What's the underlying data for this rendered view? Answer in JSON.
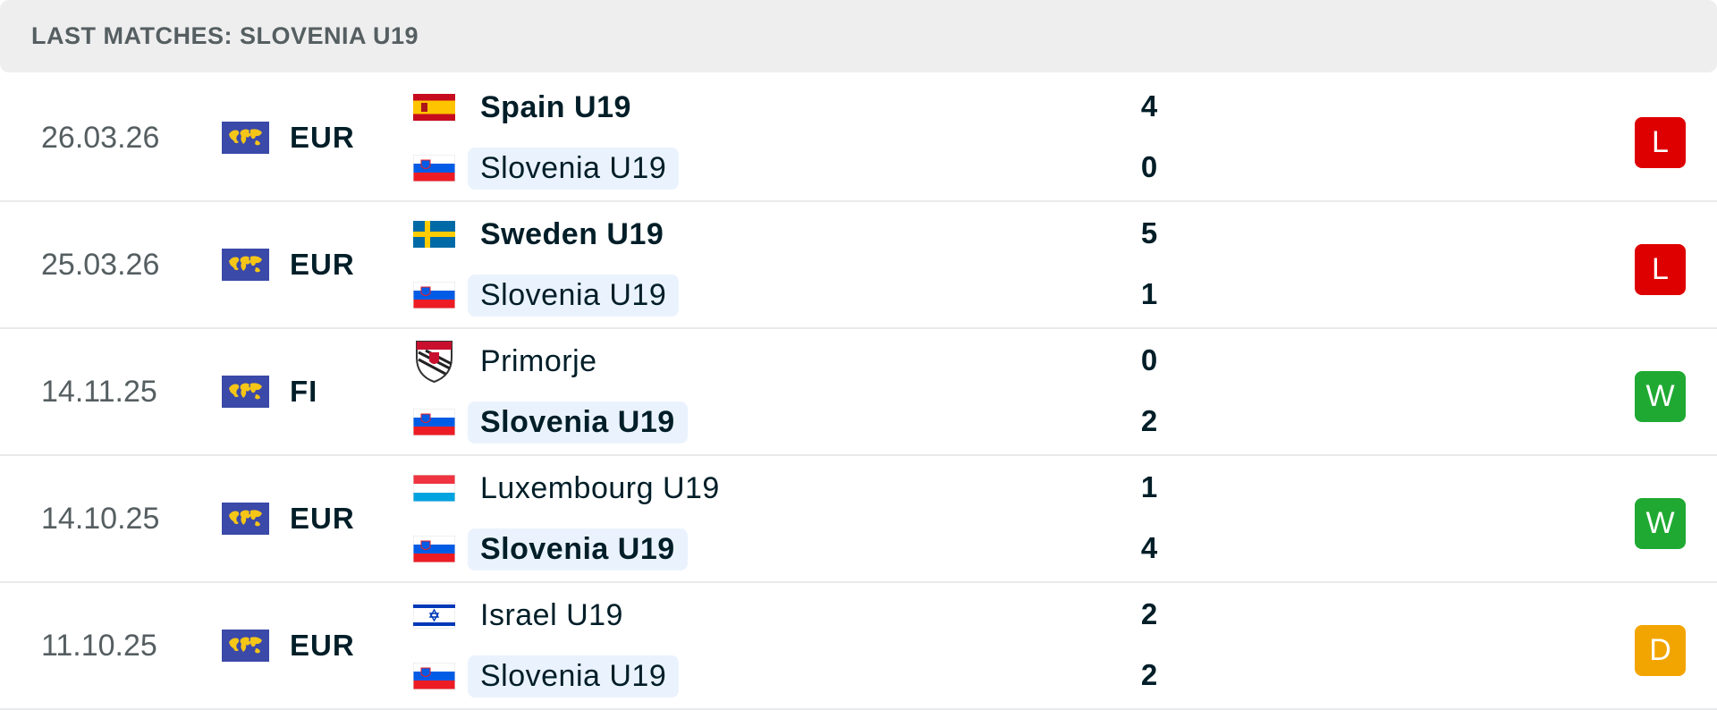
{
  "header": {
    "title": "LAST MATCHES: SLOVENIA U19"
  },
  "colors": {
    "loss": "#de0000",
    "win": "#1fa932",
    "draw": "#f2a500",
    "highlight": "#eaf3fd"
  },
  "matches": [
    {
      "date": "26.03.26",
      "competition": "EUR",
      "home": {
        "name": "Spain U19",
        "flag": "spain-flag-icon",
        "bold": true,
        "highlight": false
      },
      "away": {
        "name": "Slovenia U19",
        "flag": "slovenia-flag-icon",
        "bold": false,
        "highlight": true
      },
      "home_score": "4",
      "away_score": "0",
      "result": "L"
    },
    {
      "date": "25.03.26",
      "competition": "EUR",
      "home": {
        "name": "Sweden U19",
        "flag": "sweden-flag-icon",
        "bold": true,
        "highlight": false
      },
      "away": {
        "name": "Slovenia U19",
        "flag": "slovenia-flag-icon",
        "bold": false,
        "highlight": true
      },
      "home_score": "5",
      "away_score": "1",
      "result": "L"
    },
    {
      "date": "14.11.25",
      "competition": "FI",
      "home": {
        "name": "Primorje",
        "flag": "primorje-crest-icon",
        "bold": false,
        "highlight": false
      },
      "away": {
        "name": "Slovenia U19",
        "flag": "slovenia-flag-icon",
        "bold": true,
        "highlight": true
      },
      "home_score": "0",
      "away_score": "2",
      "result": "W"
    },
    {
      "date": "14.10.25",
      "competition": "EUR",
      "home": {
        "name": "Luxembourg U19",
        "flag": "luxembourg-flag-icon",
        "bold": false,
        "highlight": false
      },
      "away": {
        "name": "Slovenia U19",
        "flag": "slovenia-flag-icon",
        "bold": true,
        "highlight": true
      },
      "home_score": "1",
      "away_score": "4",
      "result": "W"
    },
    {
      "date": "11.10.25",
      "competition": "EUR",
      "home": {
        "name": "Israel U19",
        "flag": "israel-flag-icon",
        "bold": false,
        "highlight": false
      },
      "away": {
        "name": "Slovenia U19",
        "flag": "slovenia-flag-icon",
        "bold": false,
        "highlight": true
      },
      "home_score": "2",
      "away_score": "2",
      "result": "D"
    }
  ]
}
